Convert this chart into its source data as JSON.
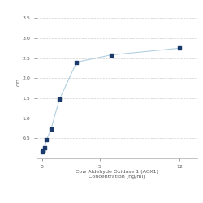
{
  "x": [
    0.0,
    0.047,
    0.094,
    0.188,
    0.375,
    0.75,
    1.5,
    3,
    6,
    12
  ],
  "y": [
    0.158,
    0.175,
    0.21,
    0.27,
    0.46,
    0.72,
    1.47,
    2.4,
    2.58,
    2.75
  ],
  "line_color": "#b0cfe0",
  "marker_color": "#1a3a6b",
  "marker_size": 3.5,
  "xlabel_line1": "Cow Aldehyde Oxidase 1 (AOX1)",
  "xlabel_line2": "Concentration (ng/ml)",
  "ylabel": "OD",
  "xlim": [
    -0.5,
    13.5
  ],
  "ylim": [
    0,
    3.8
  ],
  "yticks": [
    0.5,
    1.0,
    1.5,
    2.0,
    2.5,
    3.0,
    3.5
  ],
  "xticks": [
    0,
    5,
    12
  ],
  "grid_color": "#d0d0d0",
  "bg_color": "#ffffff",
  "font_size": 4.5,
  "label_font_size": 4.5,
  "tick_label_color": "#555555",
  "spine_color": "#aaaaaa"
}
